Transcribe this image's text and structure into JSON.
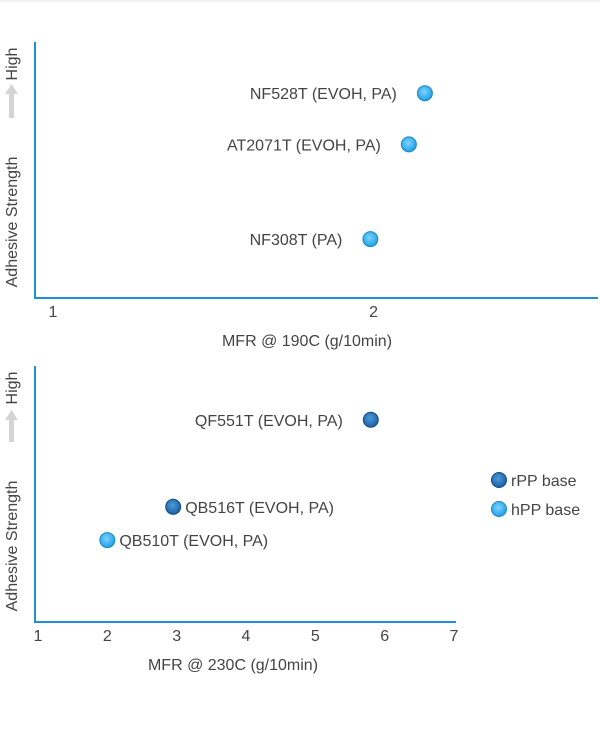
{
  "chart_data": [
    {
      "type": "scatter",
      "title": "",
      "xlabel": "MFR @ 190C (g/10min)",
      "ylabel": "Adhesive Strength",
      "ylabel_high": "High",
      "xlim": [
        1,
        2.7
      ],
      "ylim": [
        0,
        1
      ],
      "x_ticks": [
        1,
        2
      ],
      "grid": false,
      "points": [
        {
          "label": "NF528T (EVOH, PA)",
          "x": 2.16,
          "y": 0.8,
          "series": "hPP base"
        },
        {
          "label": "AT2071T (EVOH, PA)",
          "x": 2.11,
          "y": 0.6,
          "series": "hPP base"
        },
        {
          "label": "NF308T (PA)",
          "x": 1.99,
          "y": 0.23,
          "series": "hPP base"
        }
      ]
    },
    {
      "type": "scatter",
      "title": "",
      "xlabel": "MFR @ 230C (g/10min)",
      "ylabel": "Adhesive Strength",
      "ylabel_high": "High",
      "xlim": [
        1,
        7
      ],
      "ylim": [
        0,
        1
      ],
      "x_ticks": [
        1,
        2,
        3,
        4,
        5,
        6,
        7
      ],
      "grid": false,
      "points": [
        {
          "label": "QF551T (EVOH, PA)",
          "x": 5.8,
          "y": 0.79,
          "series": "rPP base"
        },
        {
          "label": "QB516T (EVOH, PA)",
          "x": 2.95,
          "y": 0.45,
          "series": "rPP base"
        },
        {
          "label": "QB510T (EVOH, PA)",
          "x": 2.0,
          "y": 0.32,
          "series": "hPP base"
        }
      ]
    }
  ],
  "legend": {
    "placement": "right",
    "items": [
      {
        "name": "rPP base",
        "color": "#1a5fa3",
        "highlight": "#4f9ad8"
      },
      {
        "name": "hPP base",
        "color": "#1e9fe3",
        "highlight": "#7fd3ff"
      }
    ]
  },
  "colors": {
    "axis": "#1e8fd8",
    "text": "#444444",
    "arrow": "#d4d4d4"
  }
}
